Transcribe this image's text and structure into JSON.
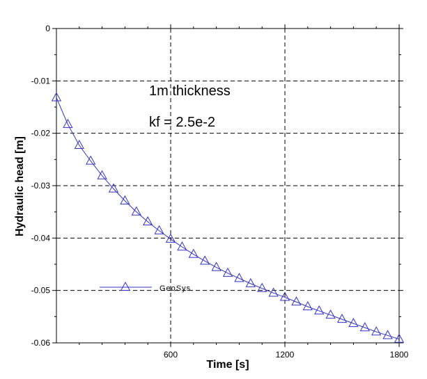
{
  "chart_data": {
    "type": "line",
    "xlabel": "Time [s]",
    "ylabel": "Hydraulic head [m]",
    "xlim": [
      0,
      1800
    ],
    "ylim": [
      -0.06,
      0
    ],
    "x_ticks": [
      600,
      1200,
      1800
    ],
    "x_tick_labels": [
      "600",
      "1200",
      "1800"
    ],
    "y_ticks": [
      0,
      -0.01,
      -0.02,
      -0.03,
      -0.04,
      -0.05,
      -0.06
    ],
    "y_tick_labels": [
      "0",
      "-0.01",
      "-0.02",
      "-0.03",
      "-0.04",
      "-0.05",
      "-0.06"
    ],
    "grid": true,
    "annotations": [
      "1m thickness",
      "kf = 2.5e-2"
    ],
    "legend_position": "lower-left",
    "series": [
      {
        "name": "GeoSys",
        "color": "#3333cc",
        "marker": "triangle",
        "x": [
          0,
          60,
          120,
          180,
          240,
          300,
          360,
          420,
          480,
          540,
          600,
          660,
          720,
          780,
          840,
          900,
          960,
          1020,
          1080,
          1140,
          1200,
          1260,
          1320,
          1380,
          1440,
          1500,
          1560,
          1620,
          1680,
          1740,
          1800
        ],
        "y": [
          -0.0132,
          -0.0183,
          -0.0223,
          -0.0253,
          -0.0281,
          -0.0306,
          -0.0329,
          -0.035,
          -0.0369,
          -0.0386,
          -0.0402,
          -0.0417,
          -0.0431,
          -0.0444,
          -0.0456,
          -0.0467,
          -0.0477,
          -0.0487,
          -0.0496,
          -0.0505,
          -0.0513,
          -0.0522,
          -0.0531,
          -0.0539,
          -0.0547,
          -0.0555,
          -0.0563,
          -0.0571,
          -0.0579,
          -0.0586,
          -0.0593
        ]
      }
    ]
  }
}
